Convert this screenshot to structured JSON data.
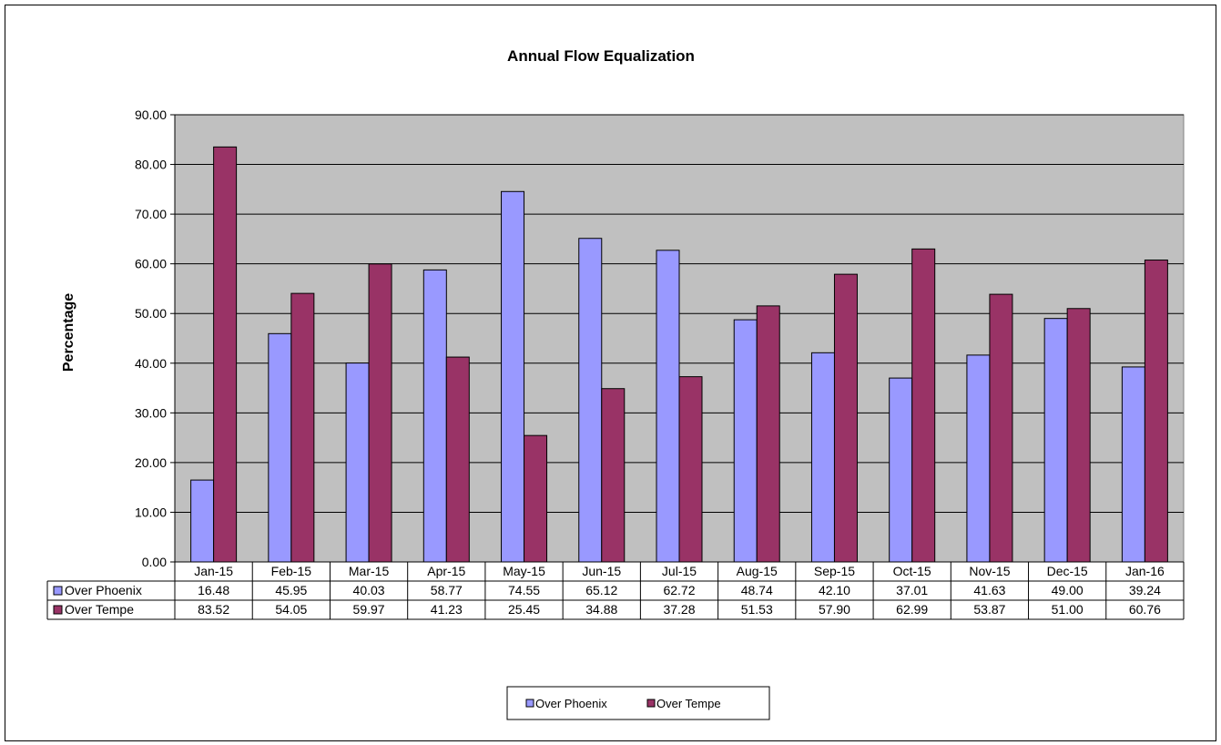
{
  "chart_data": {
    "type": "bar",
    "title": "Annual Flow Equalization",
    "xlabel": "",
    "ylabel": "Percentage",
    "ylim": [
      0,
      90
    ],
    "yticks": [
      "0.00",
      "10.00",
      "20.00",
      "30.00",
      "40.00",
      "50.00",
      "60.00",
      "70.00",
      "80.00",
      "90.00"
    ],
    "grid": true,
    "legend": "bottom",
    "categories": [
      "Jan-15",
      "Feb-15",
      "Mar-15",
      "Apr-15",
      "May-15",
      "Jun-15",
      "Jul-15",
      "Aug-15",
      "Sep-15",
      "Oct-15",
      "Nov-15",
      "Dec-15",
      "Jan-16"
    ],
    "series": [
      {
        "name": "Over Phoenix",
        "color": "#9999ff",
        "values": [
          16.48,
          45.95,
          40.03,
          58.77,
          74.55,
          65.12,
          62.72,
          48.74,
          42.1,
          37.01,
          41.63,
          49.0,
          39.24
        ],
        "labels": [
          "16.48",
          "45.95",
          "40.03",
          "58.77",
          "74.55",
          "65.12",
          "62.72",
          "48.74",
          "42.10",
          "37.01",
          "41.63",
          "49.00",
          "39.24"
        ]
      },
      {
        "name": "Over Tempe",
        "color": "#993366",
        "values": [
          83.52,
          54.05,
          59.97,
          41.23,
          25.45,
          34.88,
          37.28,
          51.53,
          57.9,
          62.99,
          53.87,
          51.0,
          60.76
        ],
        "labels": [
          "83.52",
          "54.05",
          "59.97",
          "41.23",
          "25.45",
          "34.88",
          "37.28",
          "51.53",
          "57.90",
          "62.99",
          "53.87",
          "51.00",
          "60.76"
        ]
      }
    ],
    "plot_background": "#c0c0c0"
  }
}
